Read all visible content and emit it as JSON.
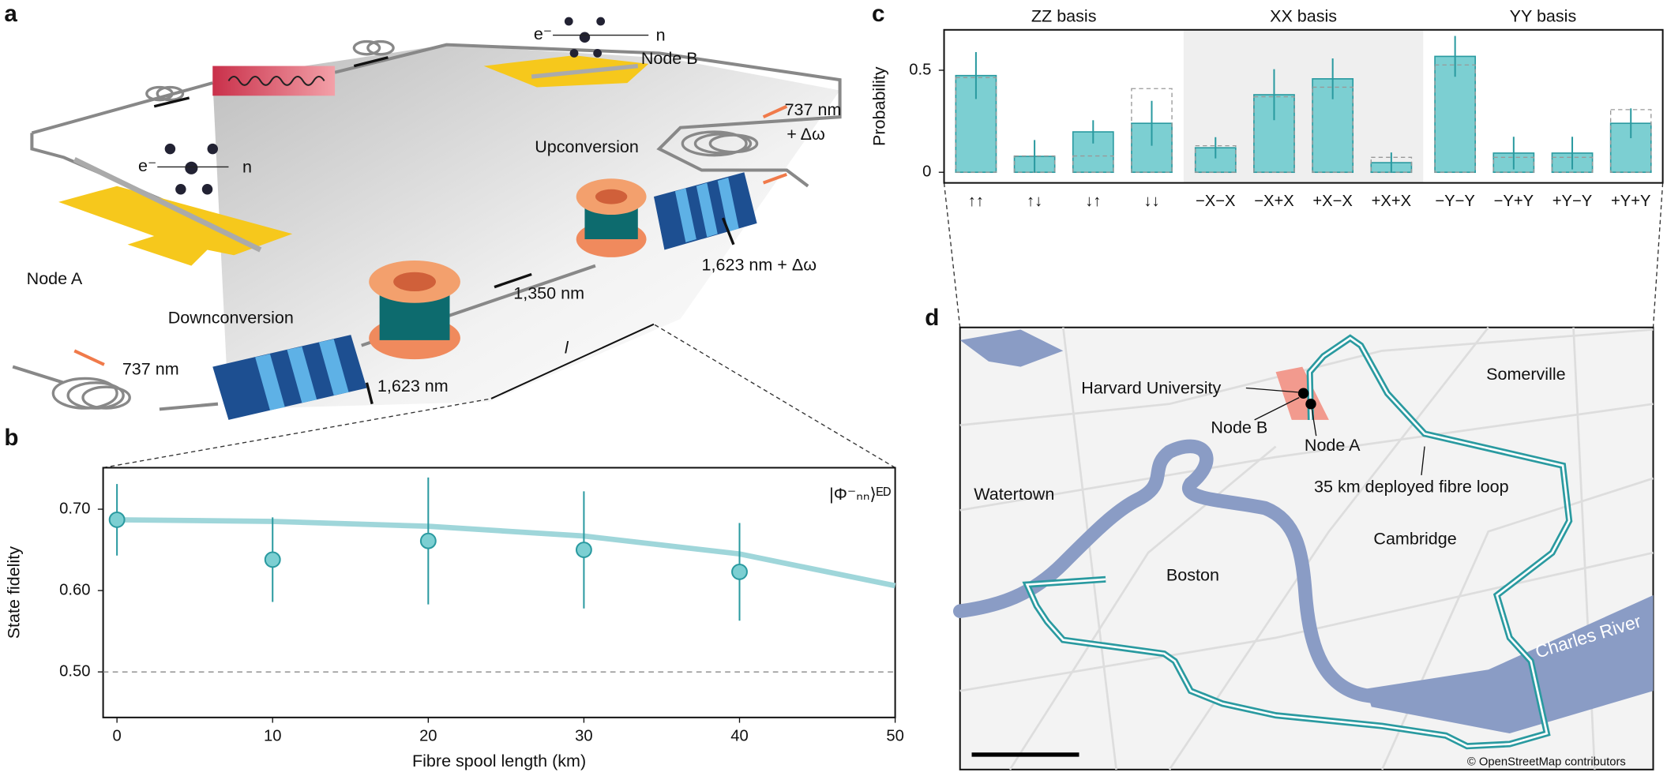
{
  "panel_labels": [
    "a",
    "b",
    "c",
    "d"
  ],
  "diagram": {
    "labels": [
      "e⁻",
      "n",
      "Node B",
      "e⁻",
      "n",
      "Node A",
      "737 nm",
      "+ Δω",
      "Upconversion",
      "1,623 nm + Δω",
      "1,350 nm",
      "Downconversion",
      "737 nm",
      "1,623 nm",
      "l"
    ]
  },
  "chart_data": [
    {
      "type": "scatter",
      "x": [
        0,
        10,
        20,
        30,
        40
      ],
      "values": [
        0.687,
        0.638,
        0.661,
        0.65,
        0.623
      ],
      "errors": [
        0.044,
        0.052,
        0.078,
        0.072,
        0.06
      ],
      "fit": {
        "x": [
          0,
          10,
          20,
          30,
          40,
          50
        ],
        "values": [
          0.687,
          0.685,
          0.679,
          0.667,
          0.645,
          0.606
        ],
        "color": "#9fd6da"
      },
      "reference_line": 0.5,
      "color": "#7ccfd2",
      "annotation": "|Φ⁻ₙₙ⟩ᴱᴰ",
      "x_label": "Fibre spool length (km)",
      "y_label": "State fidelity",
      "xlim": [
        -0.89,
        50
      ],
      "ylim": [
        0.444,
        0.751
      ],
      "xticks": [
        0,
        10,
        20,
        30,
        40,
        50
      ],
      "yticks": [
        {
          "value": 0.5,
          "label": "0.50"
        },
        {
          "value": 0.6,
          "label": "0.60"
        },
        {
          "value": 0.7,
          "label": "0.70"
        }
      ]
    },
    {
      "type": "bar",
      "groups": [
        "ZZ basis",
        "XX basis",
        "YY basis"
      ],
      "categories": [
        "↑↑",
        "↑↓",
        "↓↑",
        "↓↓",
        "−X−X",
        "−X+X",
        "+X−X",
        "+X+X",
        "−Y−Y",
        "−Y+Y",
        "+Y−Y",
        "+Y+Y"
      ],
      "values": [
        0.474,
        0.078,
        0.198,
        0.24,
        0.12,
        0.38,
        0.458,
        0.047,
        0.568,
        0.094,
        0.094,
        0.24
      ],
      "errors": [
        0.115,
        0.08,
        0.057,
        0.11,
        0.052,
        0.125,
        0.1,
        0.05,
        0.1,
        0.08,
        0.08,
        0.073
      ],
      "expected": [
        0.464,
        0.08,
        0.08,
        0.41,
        0.13,
        0.37,
        0.417,
        0.073,
        0.526,
        0.073,
        0.073,
        0.307
      ],
      "color": "#7ccfd2",
      "y_label": "Probability",
      "ylim": [
        -0.052,
        0.698
      ],
      "yticks": [
        0,
        0.5
      ]
    }
  ],
  "map": {
    "labels": [
      "Harvard University",
      "Node B",
      "Node A",
      "Somerville",
      "Watertown",
      "35 km deployed fibre loop",
      "Cambridge",
      "Boston",
      "Charles River"
    ],
    "attribution": "© OpenStreetMap contributors"
  }
}
